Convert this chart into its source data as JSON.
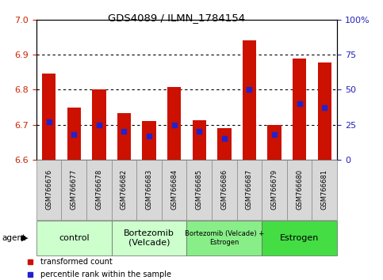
{
  "title": "GDS4089 / ILMN_1784154",
  "samples": [
    "GSM766676",
    "GSM766677",
    "GSM766678",
    "GSM766682",
    "GSM766683",
    "GSM766684",
    "GSM766685",
    "GSM766686",
    "GSM766687",
    "GSM766679",
    "GSM766680",
    "GSM766681"
  ],
  "transformed_counts": [
    6.845,
    6.748,
    6.8,
    6.733,
    6.71,
    6.808,
    6.712,
    6.69,
    6.94,
    6.7,
    6.888,
    6.878
  ],
  "percentile_ranks": [
    27,
    18,
    25,
    20,
    17,
    25,
    20,
    15,
    50,
    18,
    40,
    37
  ],
  "ymin": 6.6,
  "ymax": 7.0,
  "y2min": 0,
  "y2max": 100,
  "yticks": [
    6.6,
    6.7,
    6.8,
    6.9,
    7.0
  ],
  "y2ticks": [
    0,
    25,
    50,
    75,
    100
  ],
  "bar_color": "#cc1100",
  "marker_color": "#2222cc",
  "bar_width": 0.55,
  "groups": [
    {
      "label": "control",
      "start": 0,
      "end": 3,
      "color": "#ccffcc",
      "fontsize": 8
    },
    {
      "label": "Bortezomib\n(Velcade)",
      "start": 3,
      "end": 6,
      "color": "#ccffcc",
      "fontsize": 8
    },
    {
      "label": "Bortezomib (Velcade) +\nEstrogen",
      "start": 6,
      "end": 9,
      "color": "#88ee88",
      "fontsize": 6
    },
    {
      "label": "Estrogen",
      "start": 9,
      "end": 12,
      "color": "#44dd44",
      "fontsize": 8
    }
  ],
  "agent_label": "agent",
  "tick_color_left": "#cc2200",
  "tick_color_right": "#2222bb",
  "bg_color": "#ffffff",
  "label_box_color": "#d8d8d8",
  "gridline_color": "#000000"
}
